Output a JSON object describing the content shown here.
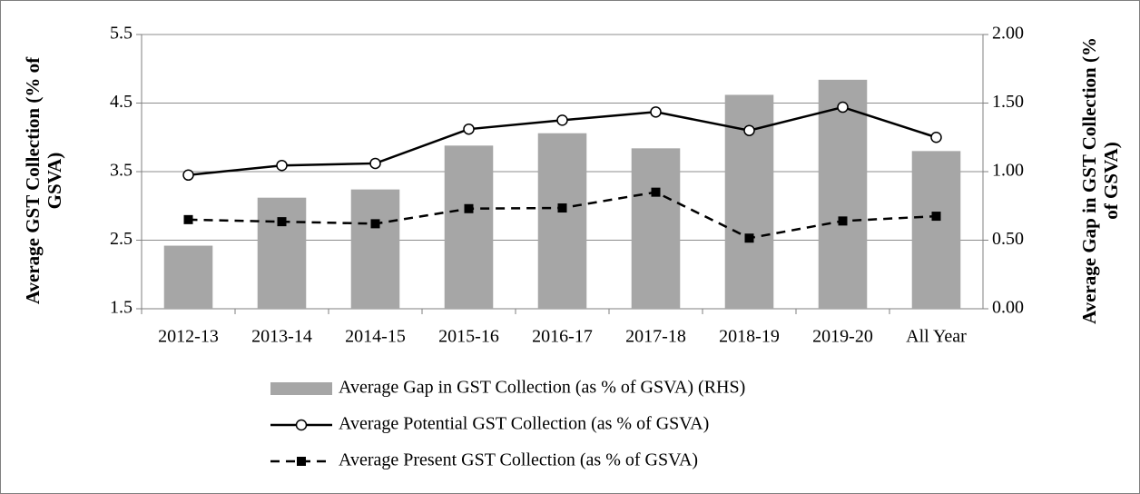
{
  "chart_data": {
    "type": "bar",
    "y_label": "Average GST Collection (% of GSVA)",
    "y2_label": "Average Gap in GST Collection (% of GSVA)",
    "categories": [
      "2012-13",
      "2013-14",
      "2014-15",
      "2015-16",
      "2016-17",
      "2017-18",
      "2018-19",
      "2019-20",
      "All Year"
    ],
    "series": [
      {
        "name": "Average Gap in GST Collection (as % of GSVA) (RHS)",
        "type": "bar",
        "axis": "y2",
        "color": "#a6a6a6",
        "values": [
          0.46,
          0.81,
          0.87,
          1.19,
          1.28,
          1.17,
          1.56,
          1.67,
          1.15
        ]
      },
      {
        "name": "Average Potential GST Collection (as % of GSVA)",
        "type": "line",
        "color": "#000000",
        "line_style": "solid",
        "marker": "circle",
        "values": [
          3.45,
          3.59,
          3.62,
          4.12,
          4.25,
          4.37,
          4.1,
          4.44,
          4.0
        ]
      },
      {
        "name": "Average Present GST Collection (as % of GSVA)",
        "type": "line",
        "color": "#000000",
        "line_style": "dashed",
        "marker": "square",
        "values": [
          2.8,
          2.77,
          2.74,
          2.96,
          2.97,
          3.2,
          2.53,
          2.78,
          2.85
        ]
      }
    ],
    "ylim": [
      1.5,
      5.5
    ],
    "yticks": [
      1.5,
      2.5,
      3.5,
      4.5,
      5.5
    ],
    "y2lim": [
      0,
      2
    ],
    "y2ticks": [
      {
        "value": 0,
        "label": "0.00"
      },
      {
        "value": 0.5,
        "label": "0.50"
      },
      {
        "value": 1,
        "label": "1.00"
      },
      {
        "value": 1.5,
        "label": "1.50"
      },
      {
        "value": 2,
        "label": "2.00"
      }
    ],
    "grid": true,
    "legend": "bottom"
  }
}
